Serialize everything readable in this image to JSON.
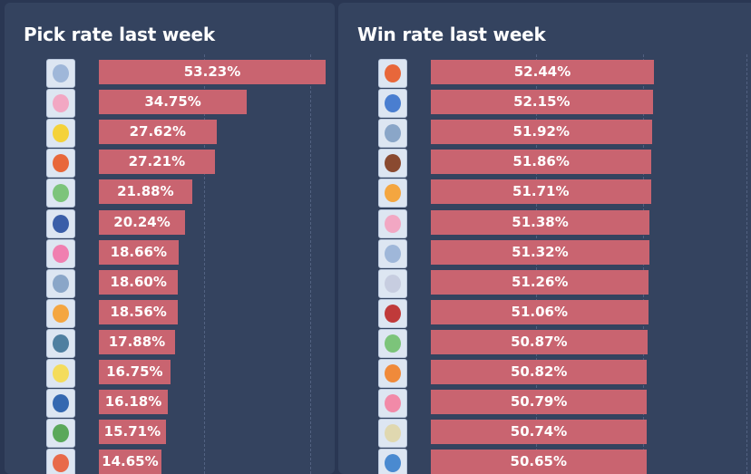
{
  "chart_data": [
    {
      "type": "bar",
      "orientation": "horizontal",
      "title": "Pick rate last week",
      "values": [
        53.23,
        34.75,
        27.62,
        27.21,
        21.88,
        20.24,
        18.66,
        18.6,
        18.56,
        17.88,
        16.75,
        16.18,
        15.71,
        14.65
      ],
      "labels": [
        "53.23%",
        "34.75%",
        "27.62%",
        "27.21%",
        "21.88%",
        "20.24%",
        "18.66%",
        "18.60%",
        "18.56%",
        "17.88%",
        "16.75%",
        "16.18%",
        "15.71%",
        "14.65%"
      ],
      "bar_color": "#c96470",
      "grid": true
    },
    {
      "type": "bar",
      "orientation": "horizontal",
      "title": "Win rate last week",
      "values": [
        52.44,
        52.15,
        51.92,
        51.86,
        51.71,
        51.38,
        51.32,
        51.26,
        51.06,
        50.87,
        50.82,
        50.79,
        50.74,
        50.65
      ],
      "labels": [
        "52.44%",
        "52.15%",
        "51.92%",
        "51.86%",
        "51.71%",
        "51.38%",
        "51.32%",
        "51.26%",
        "51.06%",
        "50.87%",
        "50.82%",
        "50.79%",
        "50.74%",
        "50.65%"
      ],
      "bar_color": "#c96470",
      "grid": true
    }
  ],
  "avatar_colors": {
    "pick": [
      "#9fb7d9",
      "#f2a7c3",
      "#f4d23a",
      "#e8673a",
      "#7cc47a",
      "#3a5ea8",
      "#f07fb0",
      "#8aa6c8",
      "#f4a640",
      "#4f7fa0",
      "#f4dc5c",
      "#3468b0",
      "#5aa85a",
      "#e86a4a"
    ],
    "win": [
      "#e8673a",
      "#4a7ed0",
      "#8aa6c8",
      "#8a4a30",
      "#f4a640",
      "#f2a7c3",
      "#9fb7d9",
      "#c7cde0",
      "#c03a3a",
      "#7cc47a",
      "#f08a3a",
      "#f28aa8",
      "#e0d8b0",
      "#4a8ad0"
    ]
  }
}
